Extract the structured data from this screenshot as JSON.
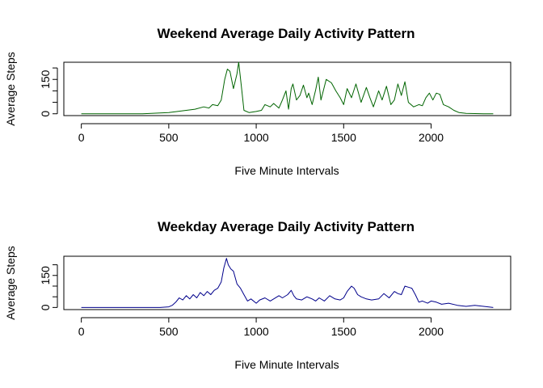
{
  "chart_data": [
    {
      "type": "line",
      "title": "Weekend Average Daily Activity Pattern",
      "xlabel": "Five Minute Intervals",
      "ylabel": "Average Steps",
      "xlim": [
        -100,
        2455
      ],
      "ylim": [
        -8,
        225
      ],
      "xticks": [
        0,
        500,
        1000,
        1500,
        2000
      ],
      "xtick_labels": [
        "0",
        "500",
        "1000",
        "1500",
        "2000"
      ],
      "yticks": [
        0,
        50,
        100,
        150,
        200
      ],
      "ytick_labels": [
        "0",
        "",
        "",
        "150",
        ""
      ],
      "grid": false,
      "color": "#006400",
      "series": [
        {
          "x": [
            0,
            350,
            400,
            500,
            550,
            600,
            650,
            700,
            730,
            750,
            780,
            800,
            820,
            835,
            850,
            870,
            890,
            900,
            915,
            930,
            960,
            1000,
            1030,
            1050,
            1080,
            1100,
            1130,
            1150,
            1170,
            1185,
            1200,
            1210,
            1230,
            1250,
            1270,
            1290,
            1300,
            1320,
            1340,
            1355,
            1370,
            1400,
            1430,
            1455,
            1480,
            1500,
            1520,
            1545,
            1570,
            1600,
            1630,
            1650,
            1670,
            1700,
            1720,
            1745,
            1770,
            1790,
            1810,
            1830,
            1850,
            1870,
            1900,
            1930,
            1950,
            1970,
            1990,
            2010,
            2030,
            2050,
            2070,
            2100,
            2130,
            2160,
            2200,
            2300,
            2355
          ],
          "y": [
            0,
            0,
            2,
            5,
            10,
            15,
            20,
            30,
            25,
            40,
            35,
            60,
            150,
            195,
            185,
            110,
            175,
            225,
            120,
            15,
            5,
            10,
            15,
            40,
            30,
            45,
            25,
            60,
            100,
            20,
            110,
            130,
            60,
            80,
            125,
            70,
            90,
            40,
            105,
            160,
            60,
            150,
            135,
            100,
            70,
            40,
            110,
            70,
            130,
            50,
            115,
            70,
            30,
            100,
            60,
            120,
            40,
            60,
            130,
            80,
            140,
            50,
            30,
            40,
            35,
            70,
            90,
            60,
            90,
            85,
            40,
            30,
            15,
            5,
            2,
            0,
            0
          ]
        }
      ]
    },
    {
      "type": "line",
      "title": "Weekday Average Daily Activity Pattern",
      "xlabel": "Five Minute Intervals",
      "ylabel": "Average Steps",
      "xlim": [
        -100,
        2455
      ],
      "ylim": [
        -10,
        240
      ],
      "xticks": [
        0,
        500,
        1000,
        1500,
        2000
      ],
      "xtick_labels": [
        "0",
        "500",
        "1000",
        "1500",
        "2000"
      ],
      "yticks": [
        0,
        50,
        100,
        150,
        200
      ],
      "ytick_labels": [
        "0",
        "",
        "",
        "150",
        ""
      ],
      "grid": false,
      "color": "#00008B",
      "series": [
        {
          "x": [
            0,
            450,
            500,
            520,
            540,
            560,
            580,
            600,
            620,
            640,
            660,
            680,
            700,
            720,
            740,
            760,
            780,
            800,
            815,
            830,
            840,
            855,
            870,
            890,
            910,
            930,
            950,
            970,
            1000,
            1020,
            1050,
            1080,
            1100,
            1130,
            1150,
            1180,
            1200,
            1215,
            1230,
            1260,
            1290,
            1320,
            1340,
            1360,
            1390,
            1420,
            1450,
            1480,
            1500,
            1520,
            1545,
            1560,
            1580,
            1600,
            1630,
            1660,
            1700,
            1730,
            1760,
            1790,
            1810,
            1830,
            1850,
            1870,
            1890,
            1910,
            1930,
            1950,
            1980,
            2000,
            2030,
            2060,
            2100,
            2150,
            2200,
            2250,
            2300,
            2355
          ],
          "y": [
            0,
            0,
            3,
            10,
            25,
            45,
            35,
            55,
            40,
            60,
            45,
            70,
            55,
            75,
            60,
            80,
            90,
            120,
            185,
            230,
            200,
            180,
            170,
            110,
            90,
            60,
            30,
            40,
            20,
            35,
            45,
            30,
            40,
            55,
            45,
            60,
            80,
            55,
            40,
            35,
            50,
            40,
            30,
            45,
            30,
            55,
            40,
            35,
            45,
            75,
            100,
            90,
            60,
            50,
            40,
            35,
            40,
            65,
            45,
            75,
            65,
            60,
            100,
            95,
            90,
            60,
            25,
            30,
            20,
            30,
            25,
            15,
            20,
            10,
            5,
            10,
            5,
            0
          ]
        }
      ]
    }
  ]
}
